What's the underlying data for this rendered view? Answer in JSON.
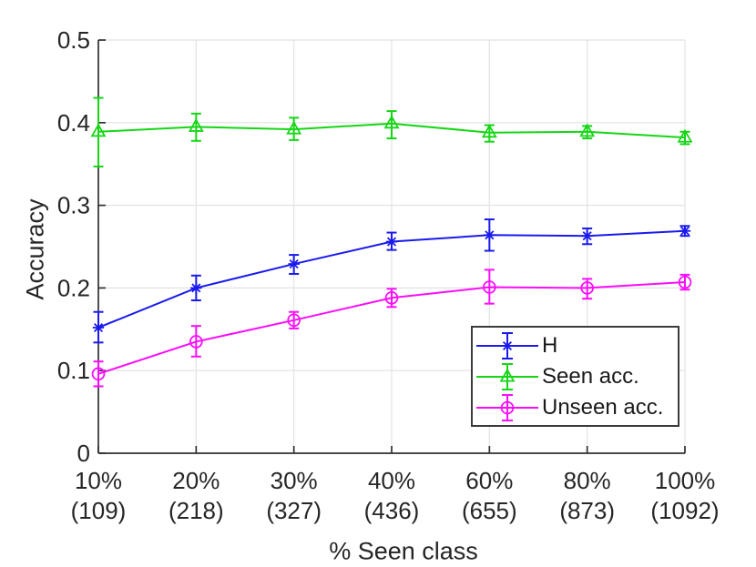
{
  "chart_data": {
    "type": "line",
    "title": "",
    "xlabel": "% Seen class",
    "ylabel": "Accuracy",
    "ylim": [
      0,
      0.5
    ],
    "yticks": [
      0,
      0.1,
      0.2,
      0.3,
      0.4,
      0.5
    ],
    "ytick_labels": [
      "0",
      "0.1",
      "0.2",
      "0.3",
      "0.4",
      "0.5"
    ],
    "categories": [
      "10%",
      "20%",
      "30%",
      "40%",
      "60%",
      "80%",
      "100%"
    ],
    "category_counts": [
      "(109)",
      "(218)",
      "(327)",
      "(436)",
      "(655)",
      "(873)",
      "(1092)"
    ],
    "grid": true,
    "legend_position": "inside-lower-right",
    "colors": {
      "axis": "#303030",
      "grid": "#e2e2e2",
      "text": "#262626",
      "legend_border": "#3b3b3b",
      "background": "#ffffff"
    },
    "series": [
      {
        "name": "H",
        "color": "#1a1aee",
        "marker": "asterisk",
        "values": [
          0.152,
          0.2,
          0.229,
          0.256,
          0.264,
          0.263,
          0.269
        ],
        "err_lo": [
          0.134,
          0.185,
          0.217,
          0.246,
          0.245,
          0.253,
          0.263
        ],
        "err_hi": [
          0.171,
          0.215,
          0.24,
          0.267,
          0.283,
          0.272,
          0.275
        ]
      },
      {
        "name": "Seen acc.",
        "color": "#15d615",
        "marker": "triangle",
        "values": [
          0.389,
          0.395,
          0.392,
          0.399,
          0.388,
          0.389,
          0.382
        ],
        "err_lo": [
          0.347,
          0.378,
          0.379,
          0.381,
          0.377,
          0.381,
          0.374
        ],
        "err_hi": [
          0.43,
          0.411,
          0.406,
          0.414,
          0.397,
          0.396,
          0.389
        ]
      },
      {
        "name": "Unseen acc.",
        "color": "#fb0dfb",
        "marker": "circle",
        "values": [
          0.096,
          0.135,
          0.161,
          0.188,
          0.201,
          0.2,
          0.207
        ],
        "err_lo": [
          0.081,
          0.117,
          0.151,
          0.177,
          0.181,
          0.187,
          0.198
        ],
        "err_hi": [
          0.111,
          0.154,
          0.171,
          0.199,
          0.222,
          0.211,
          0.216
        ]
      }
    ]
  }
}
